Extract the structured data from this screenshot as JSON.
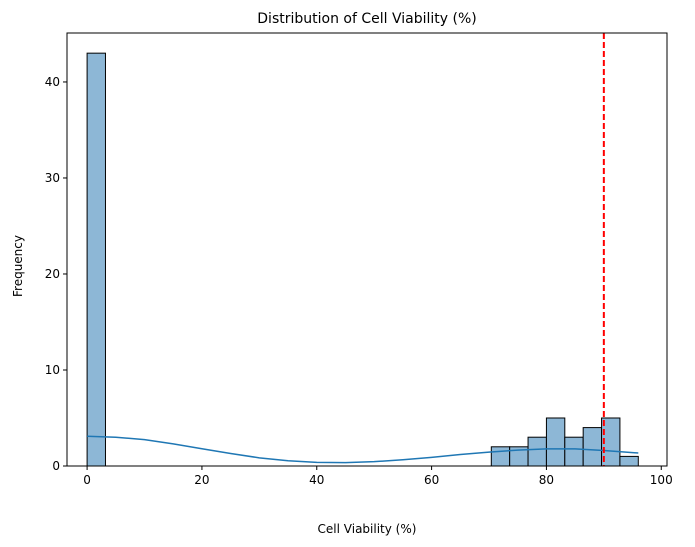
{
  "chart_data": {
    "type": "bar",
    "title": "Distribution of Cell Viability (%)",
    "xlabel": "Cell Viability (%)",
    "ylabel": "Frequency",
    "xlim": [
      -3.5,
      101
    ],
    "ylim": [
      0,
      45.1
    ],
    "xticks": [
      0,
      20,
      40,
      60,
      80,
      100
    ],
    "yticks": [
      0,
      10,
      20,
      30,
      40
    ],
    "grid": false,
    "bin_width": 3.2,
    "bins": [
      {
        "x0": 0.0,
        "x1": 3.2,
        "count": 43
      },
      {
        "x0": 70.4,
        "x1": 73.6,
        "count": 2
      },
      {
        "x0": 73.6,
        "x1": 76.8,
        "count": 2
      },
      {
        "x0": 76.8,
        "x1": 80.0,
        "count": 3
      },
      {
        "x0": 80.0,
        "x1": 83.2,
        "count": 5
      },
      {
        "x0": 83.2,
        "x1": 86.4,
        "count": 3
      },
      {
        "x0": 86.4,
        "x1": 89.6,
        "count": 4
      },
      {
        "x0": 89.6,
        "x1": 92.8,
        "count": 5
      },
      {
        "x0": 92.8,
        "x1": 96.0,
        "count": 1
      }
    ],
    "kde": {
      "x": [
        0,
        5,
        10,
        15,
        20,
        25,
        30,
        35,
        40,
        45,
        50,
        55,
        60,
        65,
        70,
        75,
        80,
        85,
        90,
        96
      ],
      "y": [
        3.1,
        3.0,
        2.75,
        2.3,
        1.8,
        1.3,
        0.85,
        0.55,
        0.38,
        0.35,
        0.45,
        0.65,
        0.9,
        1.2,
        1.45,
        1.65,
        1.78,
        1.78,
        1.62,
        1.35
      ]
    },
    "reference_line": {
      "x": 90,
      "style": "dashed",
      "color": "#ff0000"
    },
    "colors": {
      "bar_fill": "#8db7d6",
      "bar_edge": "#000000",
      "kde": "#1f77b4",
      "reference": "#ff0000"
    }
  }
}
